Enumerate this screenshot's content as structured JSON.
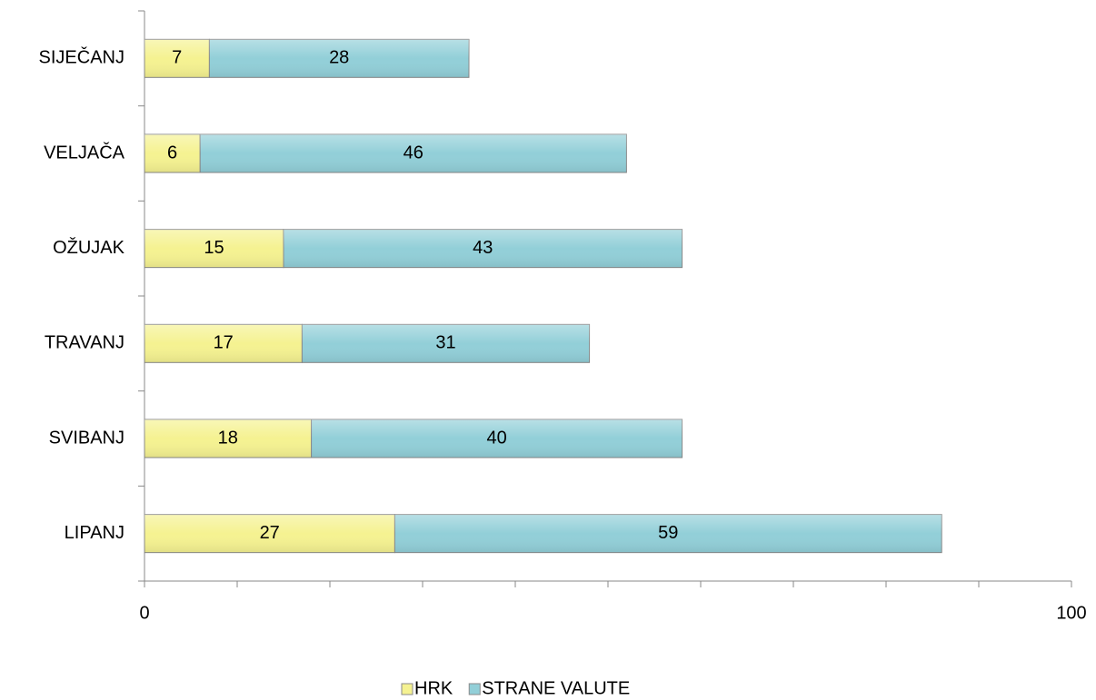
{
  "chart_data": {
    "type": "bar",
    "orientation": "horizontal",
    "stacked": true,
    "categories": [
      "SIJEČANJ",
      "VELJAČA",
      "OŽUJAK",
      "TRAVANJ",
      "SVIBANJ",
      "LIPANJ"
    ],
    "series": [
      {
        "name": "HRK",
        "color": "#f5f291",
        "values": [
          7,
          6,
          15,
          17,
          18,
          27
        ]
      },
      {
        "name": "STRANE VALUTE",
        "color": "#92cfd8",
        "values": [
          28,
          46,
          43,
          31,
          40,
          59
        ]
      }
    ],
    "xlim": [
      0,
      100
    ],
    "xticks": [
      0,
      100
    ],
    "xminorticks": [
      10,
      20,
      30,
      40,
      50,
      60,
      70,
      80,
      90
    ],
    "legend": "bottom"
  }
}
